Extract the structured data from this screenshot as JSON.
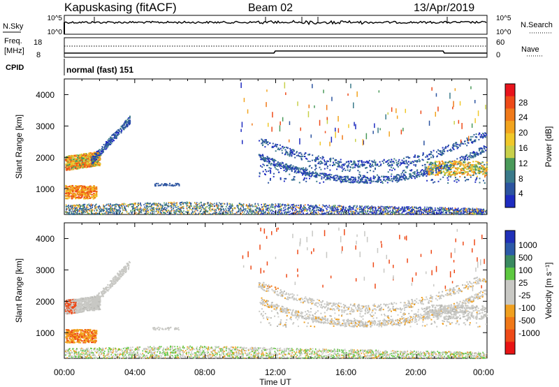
{
  "header": {
    "station": "Kapuskasing (fitACF)",
    "beam": "Beam 02",
    "date": "13/Apr/2019"
  },
  "top_panels": {
    "nsky_label": "N.Sky",
    "nsky_ticks": [
      "10^5",
      "10^0"
    ],
    "nsearch_label": "N.Search",
    "nsearch_ticks": [
      "10^5",
      "10^0"
    ],
    "freq_label_line1": "Freq.",
    "freq_label_line2": "[MHz]",
    "freq_ticks": [
      "18",
      "8"
    ],
    "nave_label": "Nave",
    "nave_ticks": [
      "60",
      "0"
    ],
    "cpid_label": "CPID",
    "cpid_value": "normal (fast) 151"
  },
  "power_colorbar": {
    "label": "Power [dB]",
    "ticks": [
      "28",
      "24",
      "20",
      "16",
      "12",
      "8",
      "4"
    ],
    "colors": [
      "#e8141c",
      "#ee4a18",
      "#f07a1a",
      "#f2a41e",
      "#f0c82a",
      "#c8d04a",
      "#4a9a5a",
      "#3a7a8a",
      "#2c54a0",
      "#1e2cc0"
    ]
  },
  "velocity_colorbar": {
    "label": "Velocity [m s⁻¹]",
    "ticks": [
      "1000",
      "500",
      "100",
      "25",
      "-25",
      "-100",
      "-500",
      "-1000"
    ],
    "colors": [
      "#2030b8",
      "#2c5aa8",
      "#3a8a60",
      "#5ec840",
      "#c8c8c4",
      "#c8c8c4",
      "#f0a020",
      "#f07818",
      "#ee4a18",
      "#e81414"
    ]
  },
  "axes": {
    "ylabel": "Slant Range [km]",
    "yticks": [
      "4000",
      "3000",
      "2000",
      "1000"
    ],
    "xticks": [
      "00:00",
      "04:00",
      "08:00",
      "12:00",
      "16:00",
      "20:00",
      "00:00"
    ],
    "xlabel": "Time UT"
  },
  "chart_data": [
    {
      "type": "heatmap",
      "title": "Power",
      "xlabel": "",
      "ylabel": "Slant Range [km]",
      "x_range_hours": [
        0,
        24
      ],
      "y_range_km": [
        180,
        4500
      ],
      "colorbar": "Power [dB]",
      "colorbar_range": [
        0,
        32
      ],
      "features": [
        {
          "t": [
            0.0,
            2.0
          ],
          "range_km": [
            1600,
            2050
          ],
          "value": 20
        },
        {
          "t": [
            1.5,
            3.5
          ],
          "range_km": [
            1900,
            3300
          ],
          "value": 8
        },
        {
          "t": [
            0.0,
            1.8
          ],
          "range_km": [
            700,
            1100
          ],
          "value": 24
        },
        {
          "t": [
            5.0,
            6.5
          ],
          "range_km": [
            1100,
            1200
          ],
          "value": 8
        },
        {
          "t": [
            11.0,
            24.0
          ],
          "range_km": [
            1100,
            2800
          ],
          "value": 8
        },
        {
          "t": [
            22.0,
            24.0
          ],
          "range_km": [
            1400,
            1800
          ],
          "value": 22
        },
        {
          "t": [
            0.0,
            24.0
          ],
          "range_km": [
            180,
            500
          ],
          "value": 12
        }
      ]
    },
    {
      "type": "heatmap",
      "title": "Velocity",
      "xlabel": "Time UT",
      "ylabel": "Slant Range [km]",
      "x_range_hours": [
        0,
        24
      ],
      "y_range_km": [
        180,
        4500
      ],
      "colorbar": "Velocity [m s⁻¹]",
      "colorbar_range": [
        -1000,
        1000
      ],
      "features": [
        {
          "t": [
            0.0,
            2.5
          ],
          "range_km": [
            1700,
            2100
          ],
          "value": 0
        },
        {
          "t": [
            0.0,
            1.8
          ],
          "range_km": [
            700,
            1200
          ],
          "value": -100
        },
        {
          "t": [
            11.5,
            12.2
          ],
          "range_km": [
            2500,
            2800
          ],
          "value": -500
        },
        {
          "t": [
            11.0,
            24.0
          ],
          "range_km": [
            1100,
            2200
          ],
          "value": 0
        },
        {
          "t": [
            0.0,
            24.0
          ],
          "range_km": [
            180,
            500
          ],
          "value": 25
        }
      ]
    }
  ]
}
